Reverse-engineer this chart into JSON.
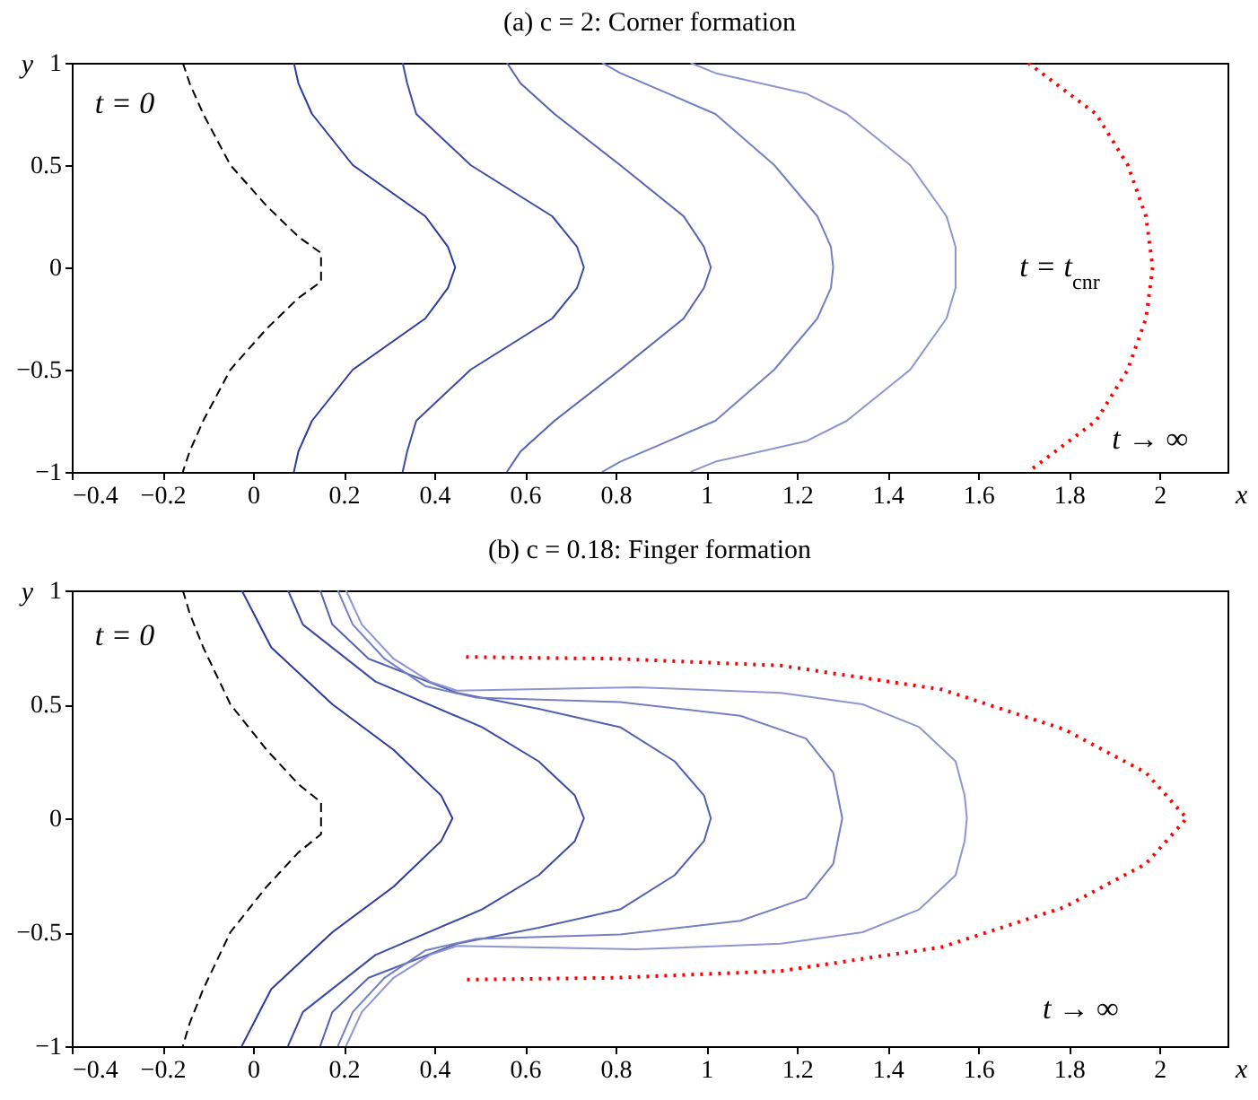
{
  "chart_data": [
    {
      "type": "line",
      "title": "(a) c = 2: Corner formation",
      "xlabel": "x",
      "ylabel": "y",
      "xlim": [
        -0.4,
        2.15
      ],
      "ylim": [
        -1,
        1
      ],
      "xticks": [
        -0.4,
        -0.2,
        0,
        0.2,
        0.4,
        0.6,
        0.8,
        1,
        1.2,
        1.4,
        1.6,
        1.8,
        2
      ],
      "yticks": [
        -1,
        -0.5,
        0,
        0.5,
        1
      ],
      "series": [
        {
          "color": "#000000",
          "line_style": "dashed",
          "x": [
            -0.155,
            -0.14,
            -0.11,
            -0.05,
            0.03,
            0.1,
            0.15,
            0.15,
            0.15,
            0.1,
            0.03,
            -0.05,
            -0.11,
            -0.14,
            -0.155
          ],
          "values": [
            1,
            0.9,
            0.75,
            0.5,
            0.3,
            0.15,
            0.07,
            0,
            -0.07,
            -0.15,
            -0.3,
            -0.5,
            -0.75,
            -0.9,
            -1
          ]
        },
        {
          "color": "#2b3a9c",
          "line_style": "solid",
          "x": [
            0.09,
            0.1,
            0.13,
            0.22,
            0.38,
            0.43,
            0.446,
            0.43,
            0.38,
            0.22,
            0.13,
            0.1,
            0.09
          ],
          "values": [
            1,
            0.9,
            0.75,
            0.5,
            0.25,
            0.1,
            0,
            -0.1,
            -0.25,
            -0.5,
            -0.75,
            -0.9,
            -1
          ]
        },
        {
          "color": "#3c4aa4",
          "line_style": "solid",
          "x": [
            0.33,
            0.34,
            0.36,
            0.48,
            0.66,
            0.715,
            0.73,
            0.715,
            0.66,
            0.48,
            0.36,
            0.34,
            0.33
          ],
          "values": [
            1,
            0.9,
            0.75,
            0.5,
            0.25,
            0.1,
            0,
            -0.1,
            -0.25,
            -0.5,
            -0.75,
            -0.9,
            -1
          ]
        },
        {
          "color": "#5562b2",
          "line_style": "solid",
          "x": [
            0.56,
            0.59,
            0.665,
            0.81,
            0.95,
            0.995,
            1.01,
            0.995,
            0.95,
            0.81,
            0.665,
            0.59,
            0.56
          ],
          "values": [
            1,
            0.9,
            0.75,
            0.5,
            0.25,
            0.1,
            0,
            -0.1,
            -0.25,
            -0.5,
            -0.75,
            -0.9,
            -1
          ]
        },
        {
          "color": "#7480c2",
          "line_style": "solid",
          "x": [
            0.77,
            0.81,
            0.915,
            1.02,
            1.15,
            1.245,
            1.275,
            1.28,
            1.275,
            1.245,
            1.15,
            1.02,
            0.915,
            0.81,
            0.77
          ],
          "values": [
            1,
            0.95,
            0.85,
            0.75,
            0.5,
            0.25,
            0.1,
            0,
            -0.1,
            -0.25,
            -0.5,
            -0.75,
            -0.85,
            -0.95,
            -1
          ]
        },
        {
          "color": "#8e95cf",
          "line_style": "solid",
          "x": [
            0.965,
            1.02,
            1.22,
            1.31,
            1.45,
            1.53,
            1.55,
            1.55,
            1.55,
            1.53,
            1.45,
            1.31,
            1.22,
            1.02,
            0.965
          ],
          "values": [
            1,
            0.95,
            0.85,
            0.75,
            0.5,
            0.25,
            0.1,
            0,
            -0.1,
            -0.25,
            -0.5,
            -0.75,
            -0.85,
            -0.95,
            -1
          ]
        },
        {
          "color": "#ff0000",
          "line_style": "dotted",
          "x": [
            1.71,
            1.86,
            1.93,
            1.97,
            1.985,
            1.97,
            1.93,
            1.86,
            1.71
          ],
          "values": [
            1,
            0.75,
            0.5,
            0.25,
            0,
            -0.25,
            -0.5,
            -0.75,
            -1
          ]
        }
      ],
      "annotations": [
        "t = 0",
        "t = t$_{cnr}$",
        "t → ∞"
      ]
    },
    {
      "type": "line",
      "title": "(b) c = 0.18: Finger formation",
      "xlabel": "x",
      "ylabel": "y",
      "xlim": [
        -0.4,
        2.15
      ],
      "ylim": [
        -1,
        1
      ],
      "xticks": [
        -0.4,
        -0.2,
        0,
        0.2,
        0.4,
        0.6,
        0.8,
        1,
        1.2,
        1.4,
        1.6,
        1.8,
        2
      ],
      "yticks": [
        -1,
        -0.5,
        0,
        0.5,
        1
      ],
      "series": [
        {
          "color": "#000000",
          "line_style": "dashed",
          "x": [
            -0.155,
            -0.14,
            -0.11,
            -0.05,
            0.03,
            0.1,
            0.15,
            0.15,
            0.15,
            0.1,
            0.03,
            -0.05,
            -0.11,
            -0.14,
            -0.155
          ],
          "values": [
            1,
            0.9,
            0.75,
            0.5,
            0.3,
            0.15,
            0.07,
            0,
            -0.07,
            -0.15,
            -0.3,
            -0.5,
            -0.75,
            -0.9,
            -1
          ]
        },
        {
          "color": "#2b3a9c",
          "line_style": "solid",
          "x": [
            -0.025,
            0.04,
            0.175,
            0.31,
            0.415,
            0.44,
            0.415,
            0.31,
            0.175,
            0.04,
            -0.025
          ],
          "values": [
            1,
            0.75,
            0.5,
            0.3,
            0.1,
            0,
            -0.1,
            -0.3,
            -0.5,
            -0.75,
            -1
          ]
        },
        {
          "color": "#3c4aa4",
          "line_style": "solid",
          "x": [
            0.077,
            0.11,
            0.27,
            0.505,
            0.63,
            0.71,
            0.73,
            0.71,
            0.63,
            0.505,
            0.27,
            0.11,
            0.077
          ],
          "values": [
            1,
            0.85,
            0.6,
            0.4,
            0.25,
            0.1,
            0,
            -0.1,
            -0.25,
            -0.4,
            -0.6,
            -0.85,
            -1
          ]
        },
        {
          "color": "#5562b2",
          "line_style": "solid",
          "x": [
            0.148,
            0.175,
            0.255,
            0.45,
            0.63,
            0.81,
            0.93,
            0.995,
            1.01,
            0.995,
            0.93,
            0.81,
            0.63,
            0.45,
            0.255,
            0.175,
            0.148
          ],
          "values": [
            1,
            0.85,
            0.7,
            0.55,
            0.48,
            0.4,
            0.25,
            0.1,
            0,
            -0.1,
            -0.25,
            -0.4,
            -0.48,
            -0.55,
            -0.7,
            -0.85,
            -1
          ]
        },
        {
          "color": "#7480c2",
          "line_style": "solid",
          "x": [
            0.187,
            0.22,
            0.29,
            0.38,
            0.49,
            0.81,
            1.075,
            1.22,
            1.28,
            1.3,
            1.28,
            1.22,
            1.075,
            0.81,
            0.49,
            0.38,
            0.29,
            0.22,
            0.187
          ],
          "values": [
            1,
            0.85,
            0.7,
            0.58,
            0.53,
            0.51,
            0.45,
            0.35,
            0.2,
            0,
            -0.2,
            -0.35,
            -0.45,
            -0.51,
            -0.53,
            -0.58,
            -0.7,
            -0.85,
            -1
          ]
        },
        {
          "color": "#8e95cf",
          "line_style": "solid",
          "x": [
            0.205,
            0.24,
            0.31,
            0.39,
            0.45,
            0.845,
            1.165,
            1.345,
            1.47,
            1.55,
            1.57,
            1.575,
            1.57,
            1.55,
            1.47,
            1.345,
            1.165,
            0.845,
            0.45,
            0.39,
            0.31,
            0.24,
            0.205
          ],
          "values": [
            1,
            0.85,
            0.7,
            0.6,
            0.56,
            0.575,
            0.55,
            0.5,
            0.4,
            0.25,
            0.1,
            0,
            -0.1,
            -0.25,
            -0.4,
            -0.5,
            -0.55,
            -0.575,
            -0.56,
            -0.6,
            -0.7,
            -0.85,
            -1
          ]
        },
        {
          "color": "#ff0000",
          "line_style": "dotted",
          "x": [
            0.47,
            0.8,
            1.165,
            1.52,
            1.79,
            1.97,
            2.06,
            1.97,
            1.79,
            1.52,
            1.165,
            0.8,
            0.47
          ],
          "values": [
            0.708,
            0.7,
            0.67,
            0.565,
            0.39,
            0.2,
            0,
            -0.2,
            -0.39,
            -0.565,
            -0.67,
            -0.7,
            -0.708
          ]
        }
      ],
      "annotations": [
        "t = 0",
        "t → ∞"
      ]
    }
  ]
}
